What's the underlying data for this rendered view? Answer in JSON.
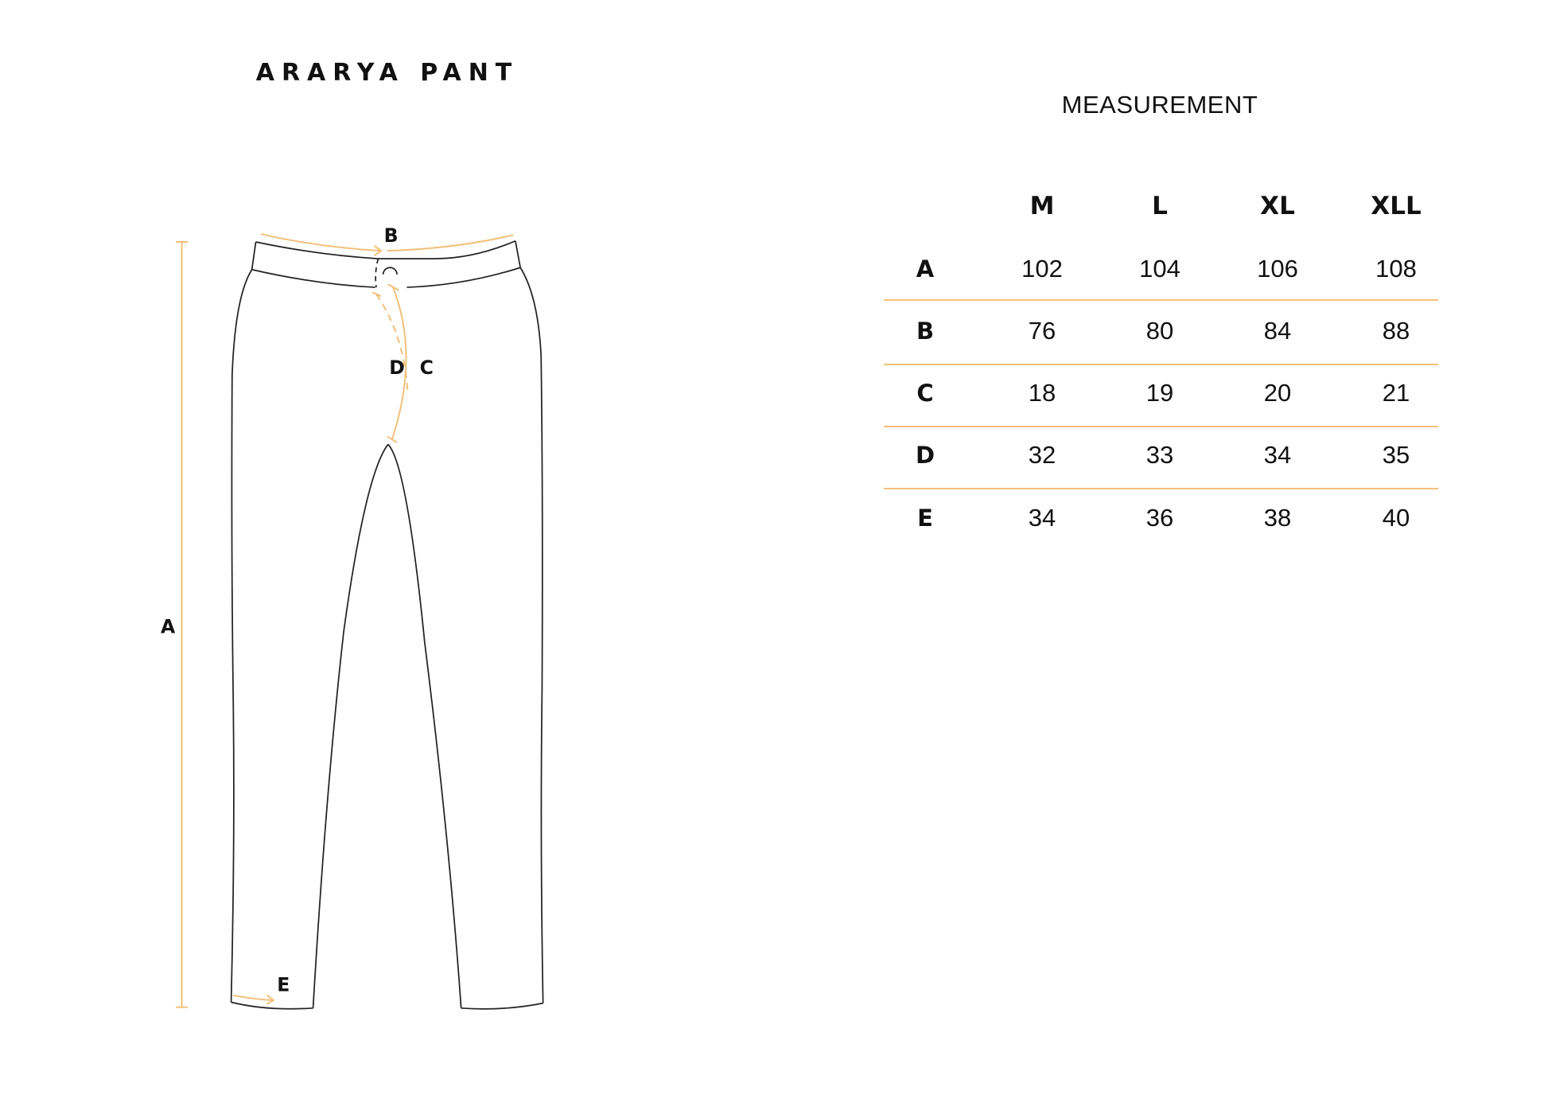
{
  "title": "ARARYA PANT",
  "measurement_title": "MEASUREMENT",
  "diagram_labels": {
    "A": "A",
    "B": "B",
    "C": "C",
    "D": "D",
    "E": "E"
  },
  "colors": {
    "accent": "#f2c07a",
    "outline": "#222222"
  },
  "table": {
    "columns": [
      "M",
      "L",
      "XL",
      "XLL"
    ],
    "rows": [
      {
        "label": "A",
        "values": [
          "102",
          "104",
          "106",
          "108"
        ]
      },
      {
        "label": "B",
        "values": [
          "76",
          "80",
          "84",
          "88"
        ]
      },
      {
        "label": "C",
        "values": [
          "18",
          "19",
          "20",
          "21"
        ]
      },
      {
        "label": "D",
        "values": [
          "32",
          "33",
          "34",
          "35"
        ]
      },
      {
        "label": "E",
        "values": [
          "34",
          "36",
          "38",
          "40"
        ]
      }
    ]
  }
}
